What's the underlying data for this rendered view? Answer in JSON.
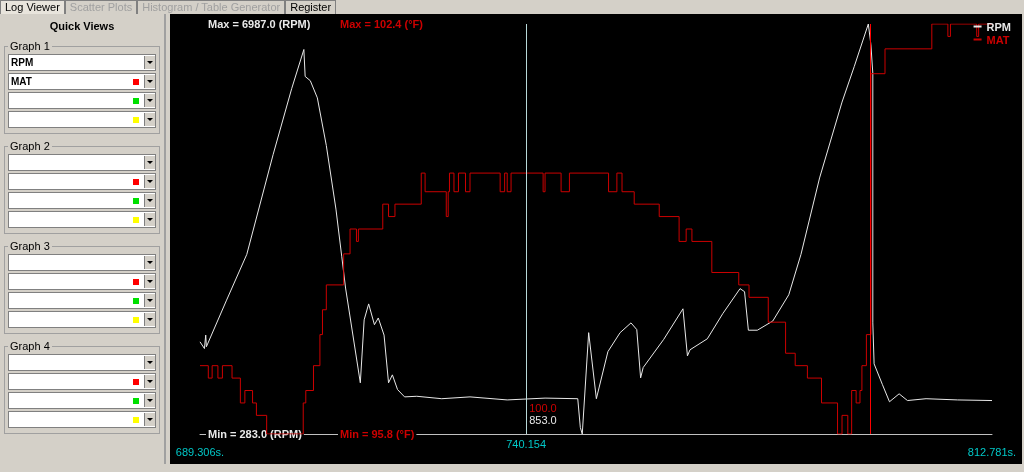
{
  "chart_data": {
    "type": "line",
    "legend": "top right",
    "xlim": [
      689.306,
      812.781
    ],
    "xticks": [
      {
        "value": 689.306,
        "label": "689.306s."
      },
      {
        "value": 812.781,
        "label": "812.781s."
      }
    ],
    "ylim": [
      283,
      6987
    ],
    "yticks": [
      {
        "value": 283,
        "label": "Min = 283.0 (RPM)"
      },
      {
        "value": 6987,
        "label": "Max = 6987.0 (RPM)"
      }
    ],
    "y2lim": [
      95.8,
      102.4
    ],
    "y2ticks": [
      {
        "value": 95.8,
        "label": "Min = 95.8 (°F)"
      },
      {
        "value": 102.4,
        "label": "Max = 102.4 (°F)"
      }
    ],
    "series": [
      {
        "name": "RPM",
        "color": "#e8e8e8",
        "x": [
          689.306,
          690.0,
          690.2,
          690.3,
          693.4,
          696.6,
          700.7,
          703.6,
          705.5,
          705.7,
          706.5,
          707.6,
          709.0,
          710.5,
          711.4,
          712.0,
          714.3,
          714.9,
          715.6,
          716.5,
          717.1,
          718.0,
          718.7,
          719.3,
          720.1,
          721.2,
          723.1,
          727.0,
          731.4,
          737.2,
          743.1,
          748.2,
          748.6,
          748.9,
          749.9,
          751.1,
          752.9,
          754.8,
          756.5,
          757.4,
          758.0,
          758.4,
          761.6,
          764.6,
          765.3,
          765.7,
          768.4,
          770.8,
          773.5,
          774.2,
          774.8,
          776.2,
          778.6,
          781.1,
          783.0,
          785.9,
          789.4,
          791.3,
          793.5,
          793.9,
          794.2,
          794.2,
          794.4,
          795.7,
          796.8,
          798.3,
          799.6,
          802.5,
          807.4,
          812.781
        ],
        "values": [
          1790,
          1680,
          1900,
          1710,
          2460,
          3220,
          4850,
          5930,
          6570,
          6130,
          6060,
          5780,
          5000,
          3960,
          3190,
          2670,
          1120,
          2150,
          2410,
          2070,
          2180,
          1900,
          1120,
          1250,
          1010,
          890,
          900,
          860,
          890,
          840,
          870,
          860,
          390,
          283,
          1940,
          860,
          1630,
          1940,
          2100,
          1990,
          1200,
          1370,
          1830,
          2330,
          1560,
          1660,
          1840,
          2250,
          2660,
          2610,
          1980,
          1980,
          2130,
          2560,
          3220,
          4470,
          5710,
          6290,
          6987,
          6650,
          6180,
          2100,
          1430,
          1090,
          810,
          940,
          830,
          860,
          840,
          830
        ]
      },
      {
        "name": "MAT",
        "color": "#cc0000",
        "type": "step",
        "axis": "y2",
        "x": [
          689.306,
          690.6,
          691.2,
          692.1,
          692.8,
          694.3,
          695.6,
          696.3,
          697.5,
          698.1,
          699.7,
          705.4,
          705.8,
          707.0,
          708.0,
          708.4,
          709.0,
          711.7,
          712.7,
          713.7,
          714.0,
          717.8,
          718.7,
          719.7,
          723.8,
          724.4,
          727.7,
          728.0,
          728.2,
          728.9,
          729.6,
          730.7,
          731.4,
          736.1,
          736.8,
          737.2,
          737.8,
          742.8,
          743.1,
          745.6,
          746.9,
          753.0,
          754.3,
          755.1,
          757.0,
          760.9,
          764.0,
          765.1,
          766.0,
          769.1,
          773.3,
          774.9,
          777.9,
          780.6,
          782.1,
          784.0,
          786.2,
          788.7,
          789.4,
          790.3,
          790.9,
          791.6,
          792.2,
          792.5,
          793.2,
          793.9,
          796.1,
          803.4,
          805.9,
          806.3,
          810.4,
          810.7,
          812.781
        ],
        "values": [
          96.9,
          96.7,
          96.9,
          96.7,
          96.9,
          96.7,
          96.3,
          96.5,
          96.3,
          96.1,
          95.8,
          96.3,
          96.5,
          96.9,
          97.4,
          97.8,
          98.2,
          98.7,
          99.1,
          98.9,
          99.1,
          99.5,
          99.3,
          99.5,
          100.0,
          99.7,
          99.3,
          99.7,
          100.0,
          99.7,
          100.0,
          99.7,
          100.0,
          99.7,
          100.0,
          99.7,
          100.0,
          99.7,
          100.0,
          99.7,
          100.0,
          99.7,
          100.0,
          99.7,
          99.5,
          99.3,
          98.9,
          99.1,
          98.9,
          98.4,
          98.2,
          98.0,
          97.6,
          97.1,
          96.9,
          96.7,
          96.3,
          95.8,
          96.1,
          95.8,
          96.5,
          96.3,
          96.5,
          96.9,
          97.4,
          101.6,
          102.0,
          102.4,
          102.2,
          102.4,
          102.2,
          102.4,
          102.4
        ]
      }
    ],
    "ref_lines": [
      {
        "axis": "x",
        "value": 740.154,
        "label": "740.154",
        "color": "#b8d8d8"
      },
      {
        "axis": "x",
        "value": 793.8,
        "color": "#ff0000"
      }
    ],
    "annotations": [
      "Log Viewer",
      "Scatter Plots",
      "Histogram / Table Generator",
      "Register",
      "Quick Views",
      "Graph 1",
      "Graph 2",
      "Graph 3",
      "Graph 4",
      "100.0",
      "853.0"
    ]
  }
}
